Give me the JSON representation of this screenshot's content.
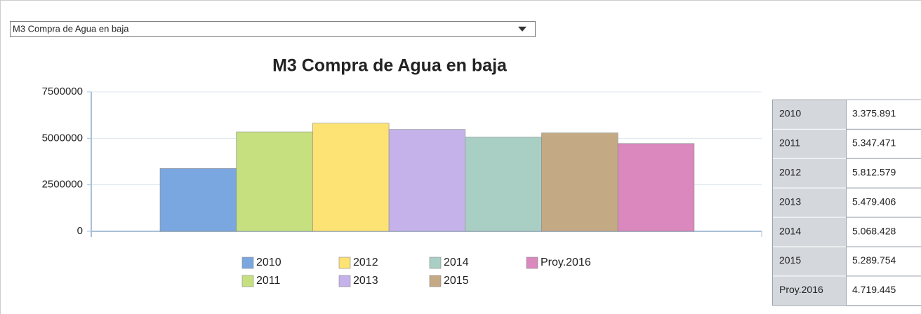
{
  "selector": "M3 Compra de Agua en baja",
  "chart_data": {
    "type": "bar",
    "title": "M3 Compra de Agua en baja",
    "categories": [
      "2010",
      "2011",
      "2012",
      "2013",
      "2014",
      "2015",
      "Proy.2016"
    ],
    "values": [
      3375891,
      5347471,
      5812579,
      5479406,
      5068428,
      5289754,
      4719445
    ],
    "value_labels": [
      "3.375.891",
      "5.347.471",
      "5.812.579",
      "5.479.406",
      "5.068.428",
      "5.289.754",
      "4.719.445"
    ],
    "colors": [
      "#7ba7e0",
      "#c6e080",
      "#fde274",
      "#c6b2ea",
      "#a9cfc4",
      "#c4a985",
      "#da88bd"
    ],
    "ylim": [
      0,
      7500000
    ],
    "yticks": [
      0,
      2500000,
      5000000,
      7500000
    ],
    "grid": true
  }
}
